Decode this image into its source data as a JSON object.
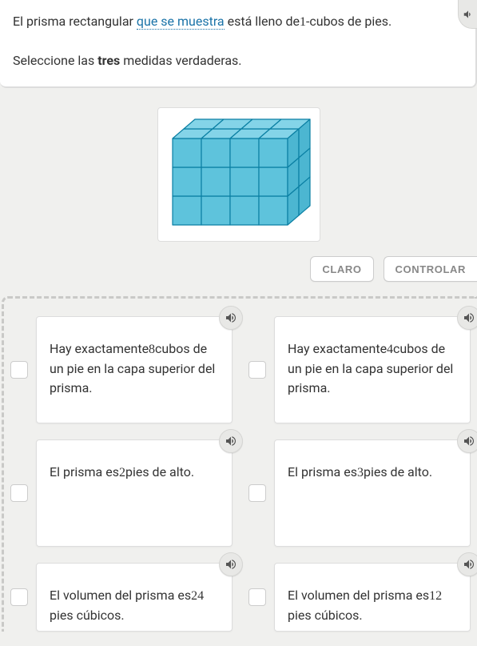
{
  "colors": {
    "page_bg": "#f0f0ee",
    "panel_bg": "#ffffff",
    "panel_border": "#dddddd",
    "text": "#333333",
    "link": "#1a73a8",
    "btn_text": "#888888",
    "dash_border": "#c9c9c7",
    "audio_bg": "#e8e8e6",
    "audio_border": "#d5d5d3",
    "audio_icon": "#555555",
    "cube_fill_top": "#84d4e8",
    "cube_fill_side": "#5ec3dc",
    "cube_fill_right": "#4cb6d1",
    "cube_stroke": "#0a7fa3"
  },
  "instructions": {
    "p1_a": "El prisma rectangular ",
    "p1_link": "que se muestra",
    "p1_b": " está lleno de",
    "p1_num": "1",
    "p1_c": "-cubos de pies.",
    "p2_a": "Seleccione las ",
    "p2_bold": "tres",
    "p2_b": " medidas verdaderas."
  },
  "figure": {
    "cols": 4,
    "rows": 3,
    "depth": 2
  },
  "buttons": {
    "clear": "CLARO",
    "check": "CONTROLAR"
  },
  "choices": [
    {
      "pre": "Hay exactamente",
      "num": "8",
      "post": "cubos de un pie en la capa superior del prisma."
    },
    {
      "pre": "Hay exactamente",
      "num": "4",
      "post": "cubos de un pie en la capa superior del prisma."
    },
    {
      "pre": "El prisma es",
      "num": "2",
      "post": "pies de alto."
    },
    {
      "pre": "El prisma es",
      "num": "3",
      "post": "pies de alto."
    },
    {
      "pre": "El volumen del prisma es",
      "num": "24",
      "post": " pies cúbicos."
    },
    {
      "pre": "El volumen del prisma es",
      "num": "12",
      "post": " pies cúbicos."
    }
  ]
}
